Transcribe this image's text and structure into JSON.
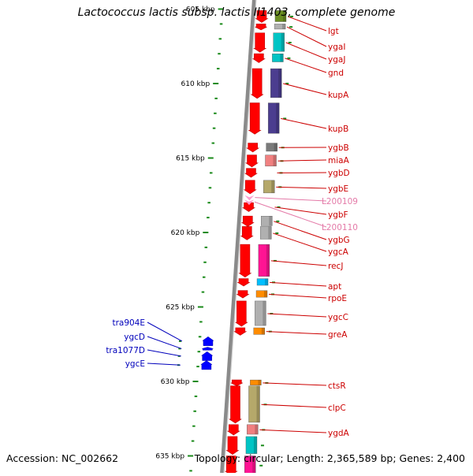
{
  "title": "Lactococcus lactis subsp. lactis Il1403, complete genome",
  "footer": {
    "accession": "Accession: NC_002662",
    "summary": "Topology: circular; Length: 2,365,589 bp; Genes: 2,400"
  },
  "colors": {
    "backbone": "#8a8a8a",
    "tick": "#1a8a1a",
    "forward_label": "#cc0000",
    "reverse_label": "#0000bb",
    "rna_label": "#e47aa8"
  },
  "ruler": [
    {
      "label": "605 kbp",
      "kbp": 605
    },
    {
      "label": "610 kbp",
      "kbp": 610
    },
    {
      "label": "615 kbp",
      "kbp": 615
    },
    {
      "label": "620 kbp",
      "kbp": 620
    },
    {
      "label": "625 kbp",
      "kbp": 625
    },
    {
      "label": "630 kbp",
      "kbp": 630
    },
    {
      "label": "635 kbp",
      "kbp": 635
    }
  ],
  "forward_genes": [
    {
      "name": "lgt",
      "start": 605.1,
      "end": 605.9,
      "cog": "#6b8e23"
    },
    {
      "name": "ygaI",
      "start": 606.0,
      "end": 606.4,
      "cog": "#b0b0b0"
    },
    {
      "name": "ygaJ",
      "start": 606.6,
      "end": 607.9,
      "cog": "#00c4c4"
    },
    {
      "name": "gnd",
      "start": 608.0,
      "end": 608.6,
      "cog": "#00c4c4"
    },
    {
      "name": "kupA",
      "start": 609.0,
      "end": 611.0,
      "cog": "#4b3d8f"
    },
    {
      "name": "kupB",
      "start": 611.3,
      "end": 613.4,
      "cog": "#4b3d8f"
    },
    {
      "name": "ygbB",
      "start": 614.0,
      "end": 614.6,
      "cog": "#7a7a7a"
    },
    {
      "name": "miaA",
      "start": 614.8,
      "end": 615.6,
      "cog": "#f08080"
    },
    {
      "name": "ygbD",
      "start": 615.7,
      "end": 616.3,
      "cog": "#ffffff"
    },
    {
      "name": "ygbE",
      "start": 616.5,
      "end": 617.4,
      "cog": "#b5a86a"
    },
    {
      "name": "ygbF",
      "start": 618.0,
      "end": 618.6,
      "cog": "#ffffff"
    },
    {
      "name": "ygbG",
      "start": 618.9,
      "end": 619.6,
      "cog": "#b0b0b0"
    },
    {
      "name": "ygcA",
      "start": 619.6,
      "end": 620.5,
      "cog": "#b0b0b0"
    },
    {
      "name": "recJ",
      "start": 620.8,
      "end": 623.0,
      "cog": "#ff1493"
    },
    {
      "name": "apt",
      "start": 623.1,
      "end": 623.6,
      "cog": "#00bfff"
    },
    {
      "name": "rpoE",
      "start": 623.9,
      "end": 624.4,
      "cog": "#ff8c00"
    },
    {
      "name": "ygcC",
      "start": 624.6,
      "end": 626.3,
      "cog": "#b0b0b0"
    },
    {
      "name": "greA",
      "start": 626.4,
      "end": 626.9,
      "cog": "#ff8c00"
    },
    {
      "name": "ctsR",
      "start": 629.9,
      "end": 630.3,
      "cog": "#ff8c00"
    },
    {
      "name": "clpC",
      "start": 630.3,
      "end": 632.8,
      "cog": "#b5a86a"
    },
    {
      "name": "ygdA",
      "start": 632.9,
      "end": 633.6,
      "cog": "#f08080"
    },
    {
      "name": "",
      "start": 633.7,
      "end": 634.9,
      "cog": "#00c4c4"
    },
    {
      "name": "",
      "start": 635.0,
      "end": 636.3,
      "cog": "#ff1493"
    }
  ],
  "rna_genes": [
    {
      "name": "L200109",
      "start": 617.5,
      "end": 617.8
    },
    {
      "name": "L200110",
      "start": 617.8,
      "end": 618.1
    }
  ],
  "reverse_genes": [
    {
      "name": "tra904E",
      "start": 627.0,
      "end": 627.6
    },
    {
      "name": "ygcD",
      "start": 627.7,
      "end": 627.9
    },
    {
      "name": "tra1077D",
      "start": 628.0,
      "end": 628.6
    },
    {
      "name": "ygcE",
      "start": 628.6,
      "end": 629.2
    }
  ],
  "label_order": {
    "right": [
      "lgt",
      "ygaI",
      "ygaJ",
      "gnd",
      "kupA",
      "kupB",
      "ygbB",
      "miaA",
      "ygbD",
      "ygbE",
      "L200109",
      "ygbF",
      "L200110",
      "ygbG",
      "ygcA",
      "recJ",
      "apt",
      "rpoE",
      "ygcC",
      "greA",
      "ctsR",
      "clpC",
      "ygdA"
    ],
    "left": [
      "tra904E",
      "ygcD",
      "tra1077D",
      "ygcE"
    ]
  }
}
